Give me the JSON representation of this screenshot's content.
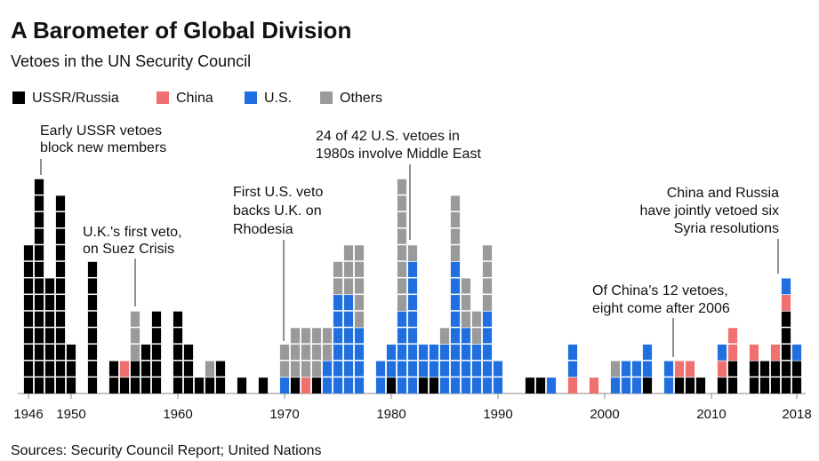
{
  "chart_data": {
    "type": "stacked-units",
    "title": "A Barometer of Global Division",
    "subtitle": "Vetoes in the UN Security Council",
    "source": "Sources: Security Council Report; United Nations",
    "x": [
      1946,
      1947,
      1948,
      1949,
      1950,
      1951,
      1952,
      1953,
      1954,
      1955,
      1956,
      1957,
      1958,
      1959,
      1960,
      1961,
      1962,
      1963,
      1964,
      1965,
      1966,
      1967,
      1968,
      1969,
      1970,
      1971,
      1972,
      1973,
      1974,
      1975,
      1976,
      1977,
      1978,
      1979,
      1980,
      1981,
      1982,
      1983,
      1984,
      1985,
      1986,
      1987,
      1988,
      1989,
      1990,
      1991,
      1992,
      1993,
      1994,
      1995,
      1996,
      1997,
      1998,
      1999,
      2000,
      2001,
      2002,
      2003,
      2004,
      2005,
      2006,
      2007,
      2008,
      2009,
      2010,
      2011,
      2012,
      2013,
      2014,
      2015,
      2016,
      2017,
      2018
    ],
    "series": [
      {
        "name": "USSR/Russia",
        "color": "#000000",
        "values": [
          9,
          13,
          7,
          12,
          3,
          0,
          8,
          0,
          2,
          1,
          2,
          3,
          5,
          0,
          5,
          3,
          1,
          1,
          2,
          0,
          1,
          0,
          1,
          0,
          0,
          1,
          0,
          1,
          0,
          0,
          0,
          0,
          0,
          0,
          1,
          0,
          0,
          1,
          1,
          0,
          0,
          0,
          0,
          0,
          0,
          0,
          0,
          1,
          1,
          0,
          0,
          0,
          0,
          0,
          0,
          0,
          0,
          0,
          1,
          0,
          0,
          1,
          1,
          1,
          0,
          1,
          2,
          0,
          2,
          2,
          2,
          5,
          2
        ]
      },
      {
        "name": "China",
        "color": "#f07070",
        "values": [
          0,
          0,
          0,
          0,
          0,
          0,
          0,
          0,
          0,
          1,
          0,
          0,
          0,
          0,
          0,
          0,
          0,
          0,
          0,
          0,
          0,
          0,
          0,
          0,
          0,
          0,
          1,
          0,
          0,
          0,
          0,
          0,
          0,
          0,
          0,
          0,
          0,
          0,
          0,
          0,
          0,
          0,
          0,
          0,
          0,
          0,
          0,
          0,
          0,
          0,
          0,
          1,
          0,
          1,
          0,
          0,
          0,
          0,
          0,
          0,
          0,
          1,
          1,
          0,
          0,
          1,
          2,
          0,
          1,
          0,
          1,
          1,
          0
        ]
      },
      {
        "name": "U.S.",
        "color": "#1f6fe0",
        "values": [
          0,
          0,
          0,
          0,
          0,
          0,
          0,
          0,
          0,
          0,
          0,
          0,
          0,
          0,
          0,
          0,
          0,
          0,
          0,
          0,
          0,
          0,
          0,
          0,
          1,
          0,
          0,
          0,
          2,
          6,
          6,
          4,
          0,
          2,
          2,
          5,
          8,
          2,
          2,
          3,
          8,
          4,
          3,
          5,
          2,
          0,
          0,
          0,
          0,
          1,
          0,
          2,
          0,
          0,
          0,
          1,
          2,
          2,
          2,
          0,
          2,
          0,
          0,
          0,
          0,
          1,
          0,
          0,
          0,
          0,
          0,
          1,
          1
        ]
      },
      {
        "name": "Others",
        "color": "#9a9a9a",
        "values": [
          0,
          0,
          0,
          0,
          0,
          0,
          0,
          0,
          0,
          0,
          3,
          0,
          0,
          0,
          0,
          0,
          0,
          1,
          0,
          0,
          0,
          0,
          0,
          0,
          2,
          3,
          3,
          3,
          2,
          2,
          3,
          5,
          0,
          0,
          0,
          8,
          1,
          0,
          0,
          1,
          4,
          3,
          2,
          4,
          0,
          0,
          0,
          0,
          0,
          0,
          0,
          0,
          0,
          0,
          0,
          1,
          0,
          0,
          0,
          0,
          0,
          0,
          0,
          0,
          0,
          0,
          0,
          0,
          0,
          0,
          0,
          0,
          0
        ]
      }
    ],
    "xlim": [
      1945.5,
      2018.5
    ],
    "xticks": [
      1946,
      1950,
      1960,
      1970,
      1980,
      1990,
      2000,
      2010,
      2018
    ],
    "ylim": [
      0,
      13
    ],
    "legend": "top-left",
    "annotations": [
      [
        "Early USSR vetoes",
        "block new members"
      ],
      [
        "U.K.'s first veto,",
        "on Suez Crisis"
      ],
      [
        "First U.S. veto",
        "backs U.K. on",
        "Rhodesia"
      ],
      [
        "24 of 42 U.S. vetoes in",
        "1980s involve Middle East"
      ],
      [
        "China and Russia",
        "have jointly vetoed six",
        "Syria resolutions"
      ],
      [
        "Of China’s 12 vetoes,",
        "eight come after 2006"
      ]
    ]
  }
}
